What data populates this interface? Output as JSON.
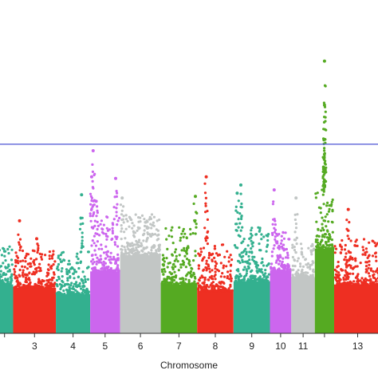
{
  "chart_data": {
    "type": "scatter",
    "title": "",
    "xlabel": "Chromosome",
    "ylabel": "",
    "grid": false,
    "threshold_line": {
      "y": 11.6,
      "color": "#5b63d8"
    },
    "ylim": [
      0,
      18
    ],
    "chromosomes": [
      {
        "label": "",
        "length": 0.8,
        "color": "#33b08f",
        "base": 3.0,
        "top": 5.4,
        "peaks": []
      },
      {
        "label": "3",
        "length": 2.0,
        "color": "#ee2f22",
        "base": 2.8,
        "top": 5.1,
        "peaks": [
          {
            "x": 0.15,
            "y": 6.9
          },
          {
            "x": 0.55,
            "y": 5.8
          }
        ]
      },
      {
        "label": "4",
        "length": 1.6,
        "color": "#33b08f",
        "base": 2.4,
        "top": 5.0,
        "peaks": [
          {
            "x": 0.75,
            "y": 8.5
          }
        ]
      },
      {
        "label": "5",
        "length": 1.4,
        "color": "#cc66ee",
        "base": 3.8,
        "top": 7.2,
        "peaks": [
          {
            "x": 0.1,
            "y": 11.2
          },
          {
            "x": 0.05,
            "y": 9.6
          },
          {
            "x": 0.85,
            "y": 9.5
          },
          {
            "x": 0.2,
            "y": 8.1
          }
        ]
      },
      {
        "label": "6",
        "length": 1.9,
        "color": "#c2c6c5",
        "base": 4.8,
        "top": 7.3,
        "peaks": [
          {
            "x": 0.05,
            "y": 8.3
          }
        ]
      },
      {
        "label": "7",
        "length": 1.7,
        "color": "#55aa22",
        "base": 3.0,
        "top": 6.5,
        "peaks": [
          {
            "x": 0.95,
            "y": 8.4
          }
        ]
      },
      {
        "label": "8",
        "length": 1.7,
        "color": "#ee2f22",
        "base": 2.6,
        "top": 5.5,
        "peaks": [
          {
            "x": 0.25,
            "y": 9.6
          }
        ]
      },
      {
        "label": "9",
        "length": 1.7,
        "color": "#33b08f",
        "base": 3.2,
        "top": 6.5,
        "peaks": [
          {
            "x": 0.2,
            "y": 9.1
          },
          {
            "x": 0.1,
            "y": 8.6
          }
        ]
      },
      {
        "label": "10",
        "length": 1.0,
        "color": "#cc66ee",
        "base": 3.8,
        "top": 6.2,
        "peaks": [
          {
            "x": 0.2,
            "y": 8.8
          }
        ]
      },
      {
        "label": "11",
        "length": 1.1,
        "color": "#c2c6c5",
        "base": 3.4,
        "top": 5.5,
        "peaks": [
          {
            "x": 0.2,
            "y": 8.3
          }
        ]
      },
      {
        "label": "",
        "length": 0.9,
        "color": "#55aa22",
        "base": 5.2,
        "top": 8.8,
        "peaks": [
          {
            "x": 0.5,
            "y": 16.7
          },
          {
            "x": 0.5,
            "y": 14.0
          },
          {
            "x": 0.45,
            "y": 10.2
          }
        ]
      },
      {
        "label": "13",
        "length": 2.2,
        "color": "#ee2f22",
        "base": 3.0,
        "top": 5.8,
        "peaks": [
          {
            "x": 0.3,
            "y": 7.6
          }
        ]
      }
    ]
  }
}
